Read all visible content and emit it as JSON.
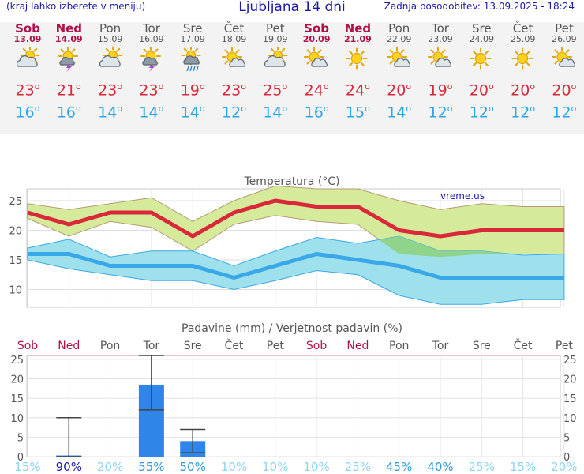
{
  "header": {
    "location_hint": "(kraj lahko izberete v meniju)",
    "title": "Ljubljana 14 dni",
    "last_update": "Zadnja posodobitev: 13.09.2025 - 18:24"
  },
  "days": [
    {
      "name": "Sob",
      "date": "13.09",
      "weekend": true,
      "icon": "sun-behind-cloud-icon",
      "tmax": "23",
      "tmin": "16"
    },
    {
      "name": "Ned",
      "date": "14.09",
      "weekend": true,
      "icon": "sun-cloud-thunder-icon",
      "tmax": "21",
      "tmin": "16"
    },
    {
      "name": "Pon",
      "date": "15.09",
      "weekend": false,
      "icon": "sun-behind-cloud-icon",
      "tmax": "23",
      "tmin": "14"
    },
    {
      "name": "Tor",
      "date": "16.09",
      "weekend": false,
      "icon": "sun-cloud-thunder-icon",
      "tmax": "23",
      "tmin": "14"
    },
    {
      "name": "Sre",
      "date": "17.09",
      "weekend": false,
      "icon": "sun-cloud-rain-icon",
      "tmax": "19",
      "tmin": "14"
    },
    {
      "name": "Čet",
      "date": "18.09",
      "weekend": false,
      "icon": "sun-small-cloud-icon",
      "tmax": "23",
      "tmin": "12"
    },
    {
      "name": "Pet",
      "date": "19.09",
      "weekend": false,
      "icon": "sun-behind-cloud-icon",
      "tmax": "25",
      "tmin": "14"
    },
    {
      "name": "Sob",
      "date": "20.09",
      "weekend": true,
      "icon": "sun-small-cloud-icon",
      "tmax": "24",
      "tmin": "16"
    },
    {
      "name": "Ned",
      "date": "21.09",
      "weekend": true,
      "icon": "sun-icon",
      "tmax": "24",
      "tmin": "15"
    },
    {
      "name": "Pon",
      "date": "22.09",
      "weekend": false,
      "icon": "sun-small-cloud-icon",
      "tmax": "20",
      "tmin": "14"
    },
    {
      "name": "Tor",
      "date": "23.09",
      "weekend": false,
      "icon": "sun-small-cloud-icon",
      "tmax": "19",
      "tmin": "12"
    },
    {
      "name": "Sre",
      "date": "24.09",
      "weekend": false,
      "icon": "sun-icon",
      "tmax": "20",
      "tmin": "12"
    },
    {
      "name": "Čet",
      "date": "25.09",
      "weekend": false,
      "icon": "sun-icon",
      "tmax": "20",
      "tmin": "12"
    },
    {
      "name": "Pet",
      "date": "26.09",
      "weekend": false,
      "icon": "sun-small-cloud-icon",
      "tmax": "20",
      "tmin": "12"
    }
  ],
  "colors": {
    "weekend": "#b0104a",
    "max_line": "#d8283a",
    "max_band": "#d6ea9c",
    "min_line": "#3aa8e8",
    "min_band": "#9ee0ec",
    "overlap_band": "#8fd48a",
    "precip_bar": "#2f86e8"
  },
  "chart_data": [
    {
      "type": "line",
      "title": "Temperatura (°C)",
      "watermark": "vreme.us",
      "ylim": [
        7,
        27
      ],
      "yticks": [
        10,
        15,
        20,
        25
      ],
      "grid": true,
      "series": [
        {
          "values": [
            23,
            21,
            23,
            23,
            19,
            23,
            25,
            24,
            24,
            20,
            19,
            20,
            20,
            20
          ],
          "band_high": [
            24.5,
            23.5,
            24.5,
            25.5,
            21.5,
            25,
            27.5,
            27,
            27,
            25,
            23.5,
            24.5,
            24,
            24
          ],
          "band_low": [
            22,
            19,
            21.5,
            20.5,
            16.5,
            21,
            22.5,
            21.5,
            21,
            16,
            15.5,
            16,
            16,
            16
          ]
        },
        {
          "values": [
            16,
            16,
            14,
            14,
            14,
            12,
            14,
            16,
            15,
            14,
            12,
            12,
            12,
            12
          ],
          "band_high": [
            17,
            18.5,
            15.5,
            16.5,
            16.5,
            14,
            16.5,
            18.8,
            17.8,
            19,
            16.5,
            16.5,
            15.8,
            16
          ],
          "band_low": [
            15,
            13.5,
            12.5,
            11.5,
            11.5,
            10,
            11.5,
            13.2,
            12.5,
            9,
            7.5,
            7.5,
            8.3,
            8.3
          ]
        }
      ]
    },
    {
      "type": "bar",
      "title": "Padavine (mm) / Verjetnost padavin (%)",
      "ylim": [
        0,
        26
      ],
      "yticks": [
        0,
        5,
        10,
        15,
        20,
        25
      ],
      "categories": [
        "Sob",
        "Ned",
        "Pon",
        "Tor",
        "Sre",
        "Čet",
        "Pet",
        "Sob",
        "Ned",
        "Pon",
        "Tor",
        "Sre",
        "Čet",
        "Pet"
      ],
      "weekend": [
        true,
        true,
        false,
        false,
        false,
        false,
        false,
        true,
        true,
        false,
        false,
        false,
        false,
        false
      ],
      "values": [
        0,
        0.3,
        0,
        18.5,
        4,
        0,
        0,
        0,
        0,
        0,
        0,
        0,
        0,
        0
      ],
      "range_low": [
        null,
        0,
        null,
        12,
        1,
        null,
        null,
        null,
        null,
        null,
        null,
        null,
        null,
        null
      ],
      "range_high": [
        null,
        10,
        null,
        26,
        7,
        null,
        null,
        null,
        null,
        null,
        null,
        null,
        null,
        null
      ],
      "probability": [
        "15%",
        "90%",
        "20%",
        "55%",
        "50%",
        "10%",
        "10%",
        "10%",
        "25%",
        "45%",
        "40%",
        "25%",
        "15%",
        "20%"
      ],
      "probability_level": [
        15,
        90,
        20,
        55,
        50,
        10,
        10,
        10,
        25,
        45,
        40,
        25,
        15,
        20
      ]
    }
  ]
}
